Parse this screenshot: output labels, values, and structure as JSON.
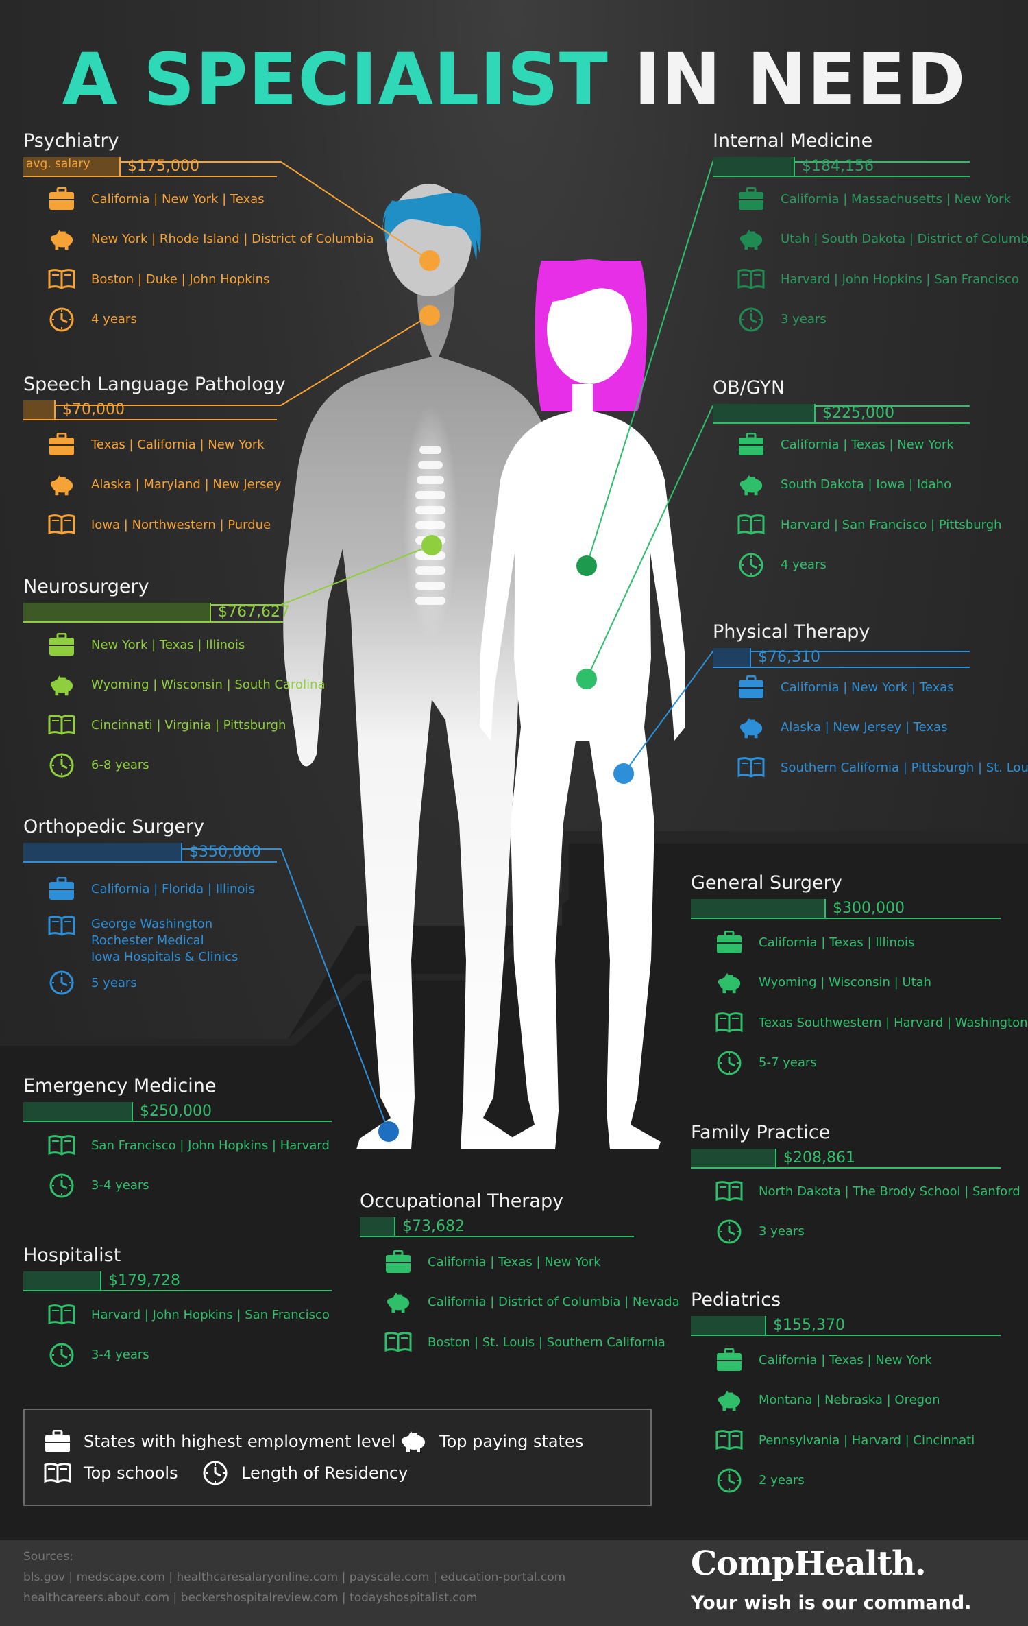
{
  "title": {
    "part1": "A SPECIALIST",
    "part2": "IN NEED"
  },
  "colors": {
    "orange": "#f5a236",
    "lime": "#8fcf3f",
    "green": "#2fbf6b",
    "blue": "#2d8fd8",
    "teal": "#2fd8b7",
    "magenta": "#e62fe6",
    "hair_blue": "#1f8fc6"
  },
  "avg_salary_label": "avg. salary",
  "sections": {
    "psychiatry": {
      "title": "Psychiatry",
      "salary": "$175,000",
      "items": [
        {
          "icon": "briefcase-icon",
          "text": "California | New York | Texas"
        },
        {
          "icon": "piggy-bank-icon",
          "text": "New York | Rhode Island | District of Columbia"
        },
        {
          "icon": "book-icon",
          "text": "Boston | Duke | John Hopkins"
        },
        {
          "icon": "clock-icon",
          "text": "4 years"
        }
      ]
    },
    "speech": {
      "title": "Speech Language Pathology",
      "salary": "$70,000",
      "items": [
        {
          "icon": "briefcase-icon",
          "text": "Texas | California | New York"
        },
        {
          "icon": "piggy-bank-icon",
          "text": "Alaska | Maryland | New Jersey"
        },
        {
          "icon": "book-icon",
          "text": "Iowa | Northwestern | Purdue"
        }
      ]
    },
    "neurosurgery": {
      "title": "Neurosurgery",
      "salary": "$767,627",
      "items": [
        {
          "icon": "briefcase-icon",
          "text": "New York | Texas | Illinois"
        },
        {
          "icon": "piggy-bank-icon",
          "text": "Wyoming | Wisconsin | South Carolina"
        },
        {
          "icon": "book-icon",
          "text": "Cincinnati | Virginia | Pittsburgh"
        },
        {
          "icon": "clock-icon",
          "text": "6-8 years"
        }
      ]
    },
    "orthopedic": {
      "title": "Orthopedic Surgery",
      "salary": "$350,000",
      "items": [
        {
          "icon": "briefcase-icon",
          "text": "California | Florida | Illinois"
        },
        {
          "icon": "clock-icon",
          "text": "5 years"
        }
      ],
      "schools": [
        "George Washington",
        "Rochester Medical",
        "Iowa Hospitals & Clinics"
      ]
    },
    "emergency": {
      "title": "Emergency Medicine",
      "salary": "$250,000",
      "items": [
        {
          "icon": "book-icon",
          "text": "San Francisco | John Hopkins | Harvard"
        },
        {
          "icon": "clock-icon",
          "text": "3-4 years"
        }
      ]
    },
    "hospitalist": {
      "title": "Hospitalist",
      "salary": "$179,728",
      "items": [
        {
          "icon": "book-icon",
          "text": "Harvard | John Hopkins | San Francisco"
        },
        {
          "icon": "clock-icon",
          "text": "3-4 years"
        }
      ]
    },
    "occupational": {
      "title": "Occupational Therapy",
      "salary": "$73,682",
      "items": [
        {
          "icon": "briefcase-icon",
          "text": "California | Texas | New York"
        },
        {
          "icon": "piggy-bank-icon",
          "text": "California | District of Columbia | Nevada"
        },
        {
          "icon": "book-icon",
          "text": "Boston | St. Louis | Southern California"
        }
      ]
    },
    "internal": {
      "title": "Internal Medicine",
      "salary": "$184,156",
      "items": [
        {
          "icon": "briefcase-icon",
          "text": "California | Massachusetts | New York"
        },
        {
          "icon": "piggy-bank-icon",
          "text": "Utah | South Dakota | District of Columbia"
        },
        {
          "icon": "book-icon",
          "text": "Harvard | John Hopkins | San Francisco"
        },
        {
          "icon": "clock-icon",
          "text": "3 years"
        }
      ]
    },
    "obgyn": {
      "title": "OB/GYN",
      "salary": "$225,000",
      "items": [
        {
          "icon": "briefcase-icon",
          "text": "California | Texas | New York"
        },
        {
          "icon": "piggy-bank-icon",
          "text": "South Dakota | Iowa | Idaho"
        },
        {
          "icon": "book-icon",
          "text": "Harvard | San Francisco | Pittsburgh"
        },
        {
          "icon": "clock-icon",
          "text": "4 years"
        }
      ]
    },
    "physical": {
      "title": "Physical Therapy",
      "salary": "$76,310",
      "items": [
        {
          "icon": "briefcase-icon",
          "text": "California | New York | Texas"
        },
        {
          "icon": "piggy-bank-icon",
          "text": "Alaska | New Jersey | Texas"
        },
        {
          "icon": "book-icon",
          "text": "Southern California | Pittsburgh | St. Louis"
        }
      ]
    },
    "general": {
      "title": "General Surgery",
      "salary": "$300,000",
      "items": [
        {
          "icon": "briefcase-icon",
          "text": "California | Texas | Illinois"
        },
        {
          "icon": "piggy-bank-icon",
          "text": "Wyoming | Wisconsin | Utah"
        },
        {
          "icon": "book-icon",
          "text": "Texas Southwestern | Harvard | Washington"
        },
        {
          "icon": "clock-icon",
          "text": "5-7 years"
        }
      ]
    },
    "family": {
      "title": "Family Practice",
      "salary": "$208,861",
      "items": [
        {
          "icon": "book-icon",
          "text": "North Dakota | The Brody School | Sanford"
        },
        {
          "icon": "clock-icon",
          "text": "3 years"
        }
      ]
    },
    "pediatrics": {
      "title": "Pediatrics",
      "salary": "$155,370",
      "items": [
        {
          "icon": "briefcase-icon",
          "text": "California | Texas | New York"
        },
        {
          "icon": "piggy-bank-icon",
          "text": "Montana | Nebraska | Oregon"
        },
        {
          "icon": "book-icon",
          "text": "Pennsylvania | Harvard | Cincinnati"
        },
        {
          "icon": "clock-icon",
          "text": "2 years"
        }
      ]
    }
  },
  "legend": {
    "employment": "States with highest employment level",
    "paying": "Top paying states",
    "schools": "Top schools",
    "residency": "Length of Residency"
  },
  "footer": {
    "sources_label": "Sources:",
    "line1": "bls.gov  |  medscape.com  |  healthcaresalaryonline.com  |  payscale.com  |  education-portal.com",
    "line2": "healthcareers.about.com  |  beckershospitalreview.com  |  todayshospitalist.com",
    "brand": "CompHealth.",
    "tagline": "Your wish is our command."
  }
}
